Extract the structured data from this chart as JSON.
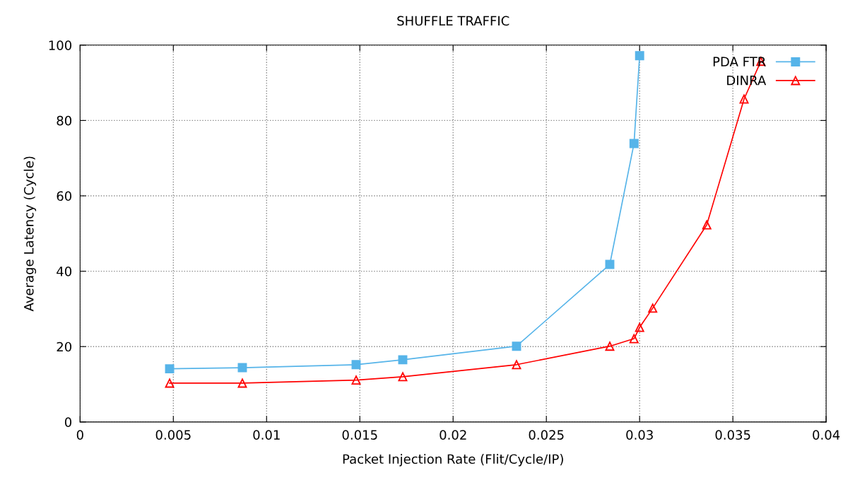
{
  "chart_data": {
    "type": "line",
    "title": "SHUFFLE TRAFFIC",
    "xlabel": "Packet Injection Rate (Flit/Cycle/IP)",
    "ylabel": "Average Latency (Cycle)",
    "xlim": [
      0,
      0.04
    ],
    "xticks": [
      0,
      0.005,
      0.01,
      0.015,
      0.02,
      0.025,
      0.03,
      0.035,
      0.04
    ],
    "ylim": [
      0,
      100
    ],
    "yticks": [
      0,
      20,
      40,
      60,
      80,
      100
    ],
    "grid": true,
    "legend": "top right",
    "series": [
      {
        "name": "PDA FTR",
        "color": "#56b4e9",
        "marker": "square",
        "x": [
          0.0048,
          0.0087,
          0.0148,
          0.0173,
          0.0234,
          0.0284,
          0.0297,
          0.03
        ],
        "values": [
          14.1,
          14.4,
          15.2,
          16.5,
          20.1,
          41.8,
          73.9,
          97.2
        ]
      },
      {
        "name": "DINRA",
        "color": "#ff0000",
        "marker": "triangle",
        "x": [
          0.0048,
          0.0087,
          0.0148,
          0.0173,
          0.0234,
          0.0284,
          0.0297,
          0.03,
          0.0307,
          0.0336,
          0.0356,
          0.0365
        ],
        "values": [
          10.3,
          10.3,
          11.1,
          12.0,
          15.2,
          20.1,
          22.1,
          25.1,
          30.2,
          52.3,
          85.7,
          95.7
        ]
      }
    ]
  }
}
